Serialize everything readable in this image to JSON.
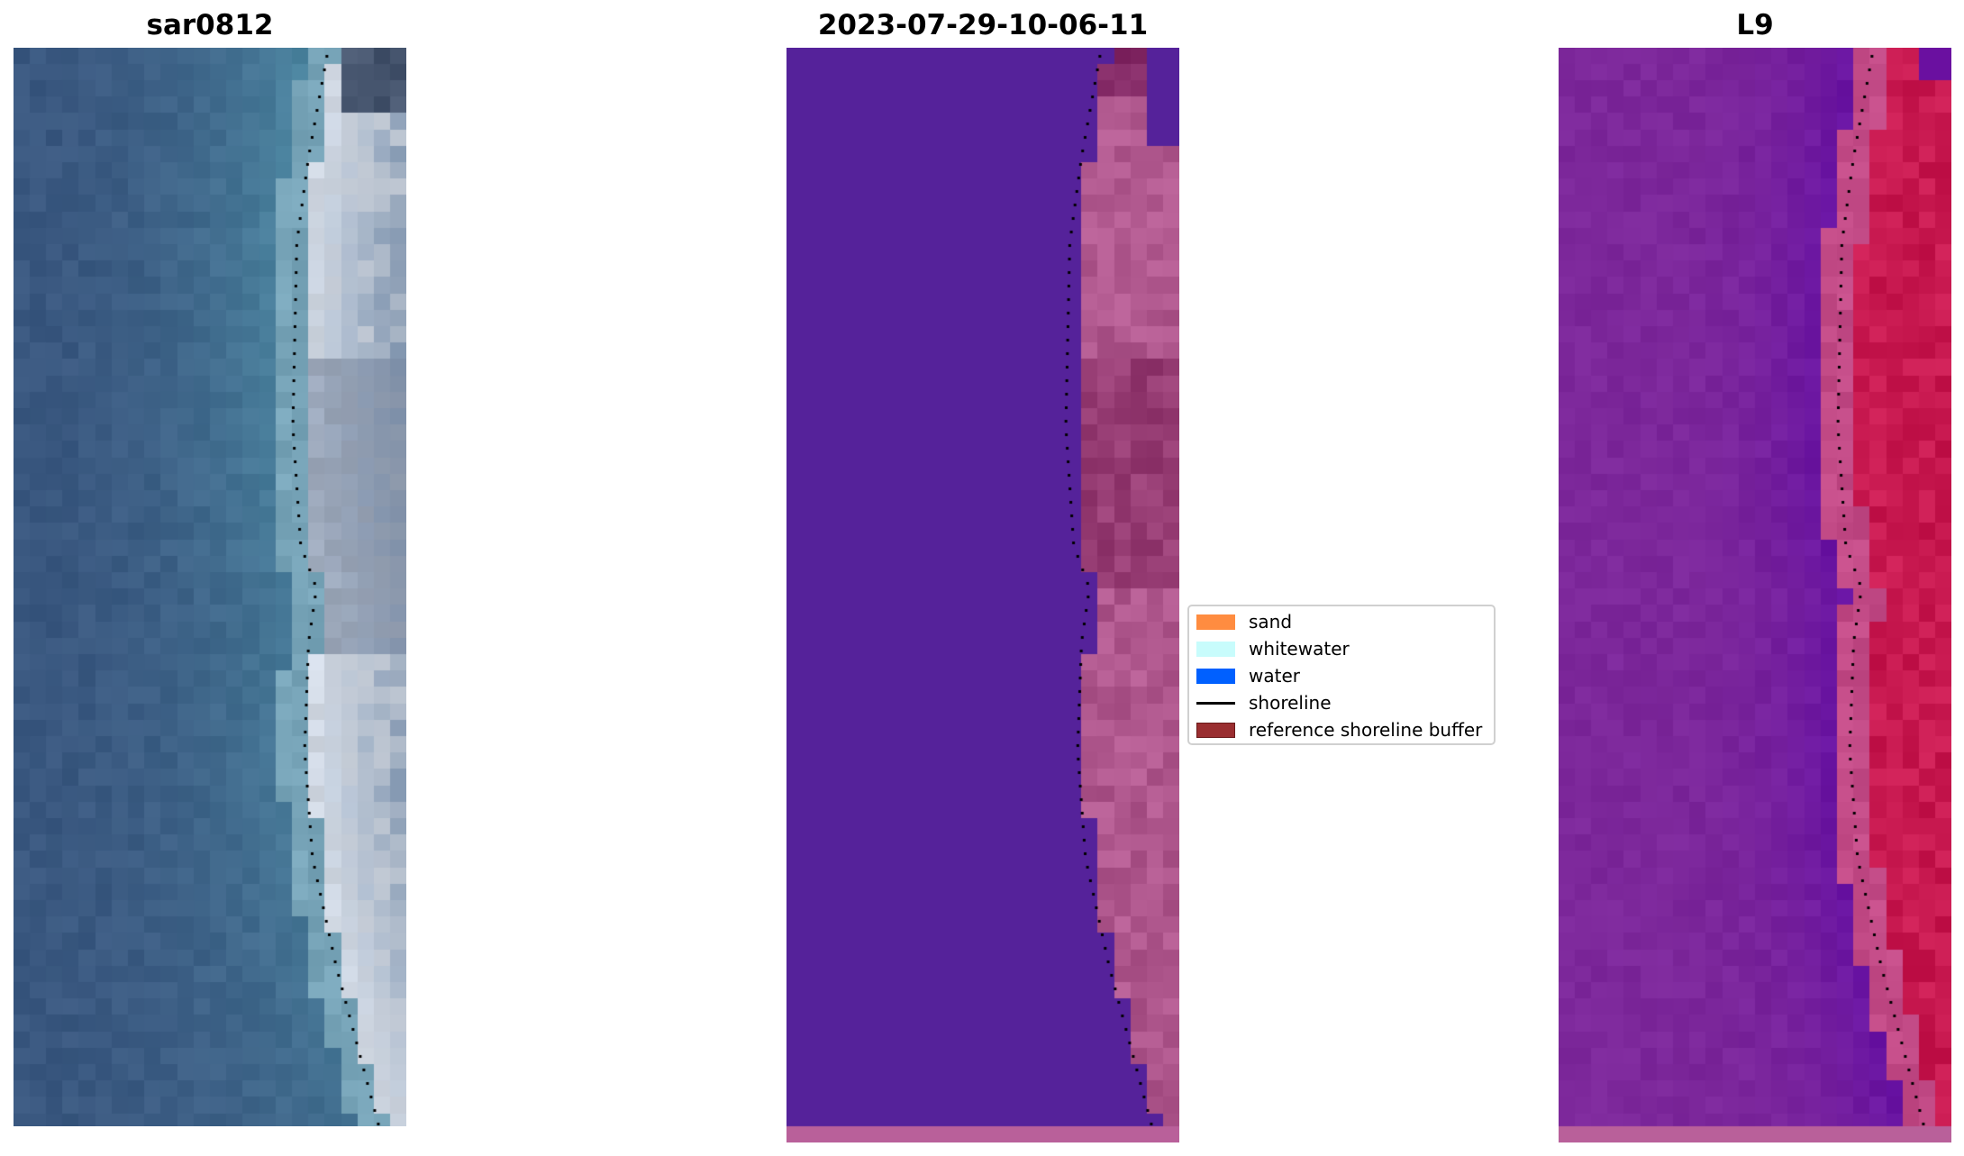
{
  "panels": [
    {
      "title": "sar0812",
      "kind": "rgb-image"
    },
    {
      "title": "2023-07-29-10-06-11",
      "kind": "classification-overlay"
    },
    {
      "title": "L9",
      "kind": "index-image"
    }
  ],
  "legend": {
    "placement": "center",
    "items": [
      {
        "label": "sand",
        "color": "#ff8c40",
        "type": "patch"
      },
      {
        "label": "whitewater",
        "color": "#c8fcfc",
        "type": "patch"
      },
      {
        "label": "water",
        "color": "#0060ff",
        "type": "patch"
      },
      {
        "label": "shoreline",
        "color": "#000000",
        "type": "line"
      },
      {
        "label": "reference shoreline buffer",
        "color": "#9a2e30",
        "type": "patch"
      }
    ]
  }
}
